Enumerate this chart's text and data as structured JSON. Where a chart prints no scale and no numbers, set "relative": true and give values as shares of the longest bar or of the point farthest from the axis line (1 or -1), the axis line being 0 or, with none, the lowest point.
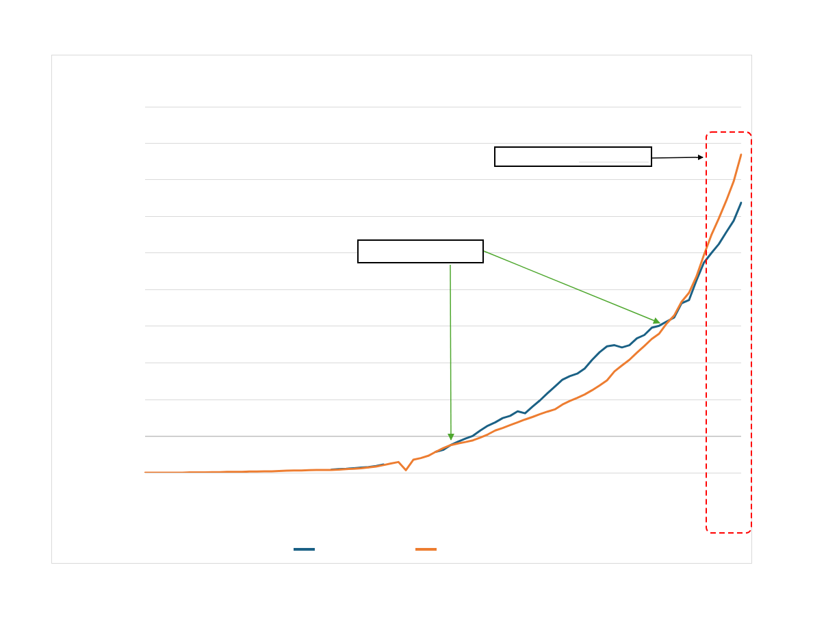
{
  "chart_data": {
    "type": "line",
    "relative": true,
    "grid": "y",
    "marker": "none",
    "line_style": "solid",
    "categories": [
      null,
      null,
      null,
      null,
      null,
      null,
      null,
      null,
      null,
      null,
      null,
      null,
      null,
      null,
      null,
      null,
      null,
      null,
      null,
      null,
      null,
      null,
      null,
      null,
      null,
      null,
      null,
      null,
      null,
      null,
      null,
      null,
      null,
      null,
      null,
      null,
      null,
      null,
      null,
      null,
      null,
      null,
      null,
      null,
      null,
      null,
      null,
      null,
      null,
      null,
      null,
      null,
      null,
      null,
      null,
      null,
      null,
      null,
      null,
      null,
      null,
      null,
      null,
      null,
      null,
      null,
      null,
      null,
      null,
      null,
      null,
      null,
      null,
      null,
      null,
      null,
      null,
      null,
      null,
      null,
      null
    ],
    "series": [
      {
        "color": "#1b6185",
        "values": [
          null,
          null,
          null,
          null,
          null,
          null,
          null,
          null,
          null,
          null,
          null,
          null,
          null,
          null,
          null,
          null,
          null,
          null,
          null,
          null,
          null,
          null,
          null,
          null,
          null,
          -0.119,
          -0.117,
          -0.116,
          -0.114,
          -0.112,
          -0.11,
          -0.106,
          -0.101,
          null,
          null,
          null,
          null,
          null,
          null,
          -0.056,
          -0.049,
          -0.032,
          -0.02,
          -0.009,
          0.001,
          0.02,
          0.037,
          0.049,
          0.064,
          0.072,
          0.088,
          0.081,
          0.105,
          0.127,
          0.152,
          0.176,
          0.2,
          0.213,
          0.222,
          0.24,
          0.271,
          0.298,
          0.319,
          0.323,
          0.315,
          0.323,
          0.347,
          0.359,
          0.385,
          0.392,
          0.407,
          0.421,
          0.472,
          0.483,
          0.553,
          0.616,
          0.65,
          0.682,
          0.724,
          0.765,
          0.829
        ]
      },
      {
        "color": "#ed7d31",
        "values": [
          -0.13,
          -0.13,
          -0.13,
          -0.13,
          -0.13,
          -0.13,
          -0.129,
          -0.129,
          -0.129,
          -0.128,
          -0.128,
          -0.127,
          -0.127,
          -0.127,
          -0.126,
          -0.126,
          -0.125,
          -0.125,
          -0.124,
          -0.123,
          -0.122,
          -0.122,
          -0.121,
          -0.12,
          -0.12,
          -0.12,
          -0.119,
          -0.117,
          -0.116,
          -0.114,
          -0.111,
          -0.108,
          -0.103,
          -0.097,
          -0.092,
          -0.121,
          -0.084,
          -0.078,
          -0.07,
          -0.056,
          -0.043,
          -0.032,
          -0.026,
          -0.021,
          -0.015,
          -0.005,
          0.006,
          0.02,
          0.029,
          0.039,
          0.049,
          0.059,
          0.068,
          0.078,
          0.087,
          0.095,
          0.112,
          0.125,
          0.136,
          0.148,
          0.163,
          0.18,
          0.198,
          0.23,
          0.251,
          0.271,
          0.296,
          0.32,
          0.345,
          0.364,
          0.4,
          0.428,
          0.477,
          0.509,
          0.567,
          0.643,
          0.714,
          0.773,
          0.836,
          0.905,
          1
        ]
      }
    ]
  }
}
